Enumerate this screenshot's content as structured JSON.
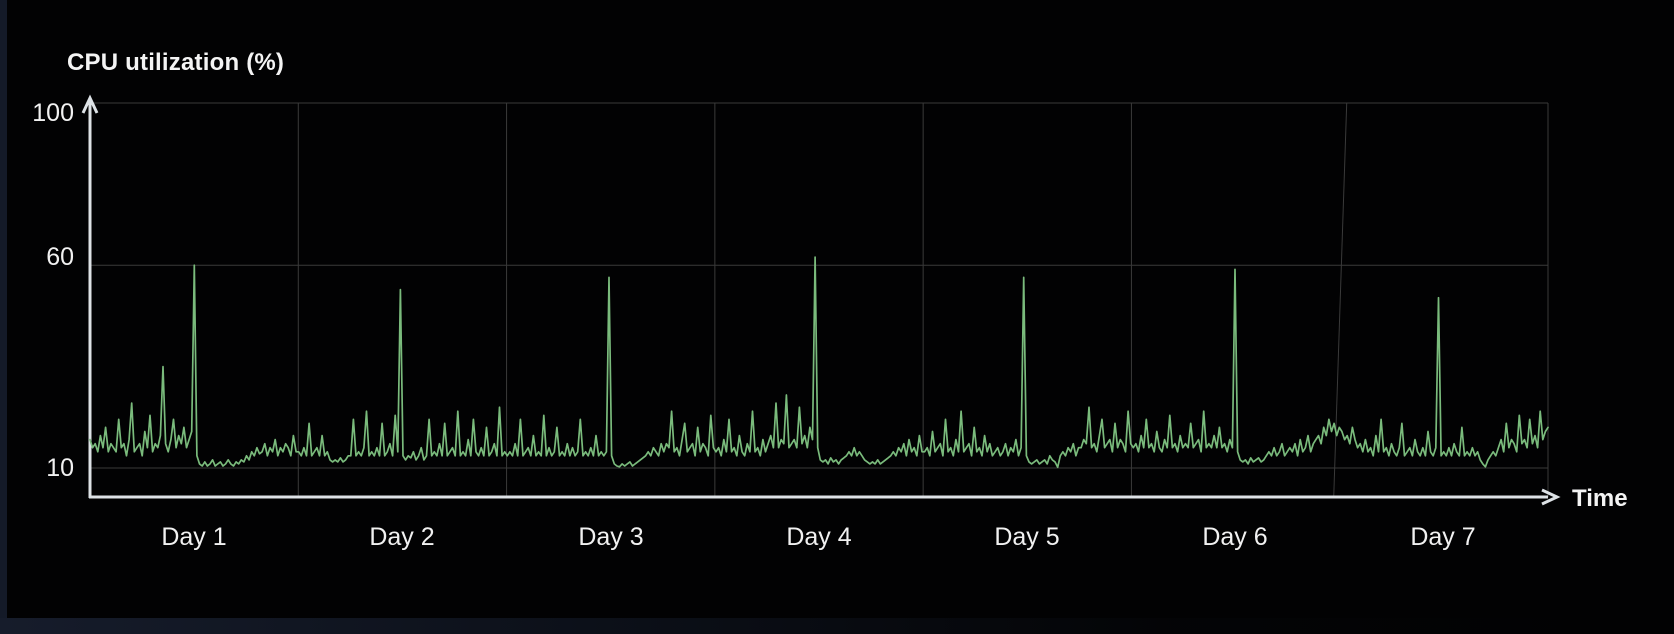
{
  "window": {
    "background_color": "#020203",
    "left_edge_color": "#141a28",
    "bottom_edge_color": "#0c1019"
  },
  "chart_data": {
    "type": "line",
    "title": "CPU utilization (%)",
    "xlabel": "Time",
    "ylabel": "CPU utilization (%)",
    "x_categories": [
      "Day 1",
      "Day 2",
      "Day 3",
      "Day 4",
      "Day 5",
      "Day 6",
      "Day 7"
    ],
    "y_ticks": [
      {
        "value": 100,
        "label": "100"
      },
      {
        "value": 60,
        "label": "60"
      },
      {
        "value": 10,
        "label": "10"
      }
    ],
    "ylim": [
      3,
      105
    ],
    "grid": true,
    "legend": false,
    "line_color": "#7abb7c",
    "axis_color": "#dde2e6",
    "grid_color": "#3a3a3a",
    "text_color": "#f1f1f1",
    "points_per_day": 80,
    "baseline_range": [
      10,
      28
    ],
    "daily_peak_spikes": [
      {
        "day": 1,
        "peak": 60
      },
      {
        "day": 2,
        "peak": 54
      },
      {
        "day": 3,
        "peak": 57
      },
      {
        "day": 4,
        "peak": 62
      },
      {
        "day": 5,
        "peak": 57
      },
      {
        "day": 6,
        "peak": 59
      },
      {
        "day": 7,
        "peak": 52
      }
    ],
    "secondary_spikes": [
      {
        "day": 1,
        "peak": 35
      }
    ],
    "series": [
      {
        "name": "CPU utilization",
        "values_per_day": [
          [
            17,
            15,
            16,
            14,
            18,
            15,
            20,
            14,
            16,
            15,
            14,
            22,
            15,
            16,
            13,
            17,
            26,
            14,
            15,
            16,
            13,
            19,
            15,
            23,
            14,
            16,
            15,
            18,
            35,
            16,
            14,
            17,
            22,
            15,
            18,
            16,
            20,
            15,
            17,
            19,
            60,
            13,
            11,
            10.5,
            11.5,
            10.5,
            11,
            12,
            10.5,
            11,
            11.5,
            10.5,
            11,
            12,
            11,
            10.5,
            11.5,
            11,
            12,
            11.5,
            13,
            12,
            14,
            13,
            15,
            13.5,
            14,
            16,
            13,
            15,
            14,
            17,
            13,
            15,
            14,
            16,
            15,
            13,
            18,
            14
          ],
          [
            14,
            13,
            15,
            13,
            21,
            13,
            14,
            15,
            13,
            18,
            13,
            14,
            12,
            11.5,
            12,
            11.5,
            12.5,
            11.5,
            12,
            13,
            13,
            22,
            13,
            14,
            13,
            15,
            24,
            13,
            14,
            13,
            15,
            13,
            21,
            13,
            14,
            16,
            13,
            23,
            14,
            54,
            13,
            12,
            13,
            12.5,
            14,
            12,
            13,
            15,
            12,
            13,
            22,
            13,
            14,
            13,
            16,
            13,
            21,
            13,
            14,
            15,
            13,
            24,
            13,
            14,
            13,
            17,
            13,
            22,
            14,
            13,
            15,
            13,
            20,
            13,
            14,
            16,
            13,
            25,
            13,
            14
          ],
          [
            13,
            14,
            13,
            16,
            13,
            22,
            13,
            14,
            15,
            13,
            18,
            13,
            14,
            13,
            23,
            13,
            15,
            13,
            14,
            20,
            13,
            14,
            13,
            16,
            13,
            15,
            13,
            14,
            22,
            13,
            14,
            13,
            15,
            13,
            18,
            13,
            14,
            13,
            14,
            57,
            13,
            11,
            10.5,
            10.3,
            11,
            10.5,
            11,
            11.5,
            10.5,
            11,
            11.5,
            12,
            12.5,
            13,
            14,
            13,
            15,
            14,
            13,
            16,
            14,
            16,
            15,
            24,
            14,
            15,
            13,
            17,
            21,
            14,
            15,
            16,
            13,
            20,
            14,
            16,
            15,
            13,
            23,
            15
          ],
          [
            14,
            15,
            13,
            17,
            14,
            22,
            14,
            15,
            13,
            18,
            14,
            13,
            16,
            14,
            24,
            14,
            15,
            13,
            17,
            14,
            16,
            18,
            15,
            26,
            15,
            17,
            16,
            28,
            15,
            16,
            17,
            15,
            25,
            16,
            18,
            15,
            20,
            17,
            62,
            15,
            12,
            11.5,
            12,
            11,
            12.5,
            11.5,
            12,
            11,
            12,
            12.5,
            13,
            14,
            13,
            15,
            13,
            14,
            13,
            12,
            11.5,
            11,
            11.5,
            11,
            12,
            11,
            11.5,
            12,
            12.5,
            13,
            14,
            13,
            15,
            14,
            16,
            13,
            17,
            14,
            15,
            13,
            18,
            14
          ],
          [
            14,
            15,
            13,
            19,
            14,
            15,
            16,
            13,
            22,
            14,
            15,
            13,
            17,
            14,
            24,
            14,
            15,
            16,
            13,
            20,
            14,
            15,
            13,
            18,
            14,
            16,
            13,
            14,
            15,
            13,
            14,
            16,
            13,
            15,
            14,
            17,
            13,
            15,
            57,
            13,
            11.5,
            11,
            11.5,
            12,
            11,
            11.5,
            12,
            11,
            13,
            12,
            11.5,
            10.2,
            13,
            14,
            13,
            15,
            14,
            16,
            13,
            15,
            15,
            17,
            16,
            25,
            15,
            16,
            14,
            18,
            22,
            15,
            16,
            17,
            14,
            21,
            15,
            17,
            16,
            14,
            24,
            16
          ],
          [
            15,
            16,
            14,
            18,
            15,
            22,
            15,
            16,
            14,
            19,
            15,
            14,
            17,
            15,
            23,
            15,
            16,
            14,
            18,
            15,
            16,
            15,
            21,
            15,
            16,
            17,
            14,
            24,
            15,
            16,
            15,
            18,
            15,
            20,
            15,
            16,
            14,
            17,
            15,
            59,
            14,
            12,
            11.5,
            12,
            11,
            12.5,
            11.5,
            12,
            12.5,
            11.5,
            12,
            13,
            14,
            13,
            15,
            13,
            14,
            16,
            13,
            14,
            15,
            14,
            16,
            13,
            17,
            14,
            15,
            18,
            14,
            16,
            17,
            18,
            16,
            20,
            18,
            22,
            19,
            21,
            18,
            20
          ],
          [
            19,
            17,
            18,
            16,
            20,
            17,
            15,
            16,
            14,
            17,
            14,
            15,
            13,
            18,
            14,
            22,
            14,
            15,
            13,
            16,
            14,
            13,
            15,
            21,
            13,
            14,
            15,
            13,
            17,
            14,
            13,
            15,
            13,
            19,
            14,
            13,
            15,
            52,
            13,
            14,
            13,
            15,
            13,
            16,
            14,
            13,
            20,
            13,
            14,
            13,
            15,
            13,
            14,
            12,
            11,
            10.3,
            12,
            13,
            14,
            13,
            15,
            17,
            14,
            21,
            15,
            17,
            16,
            14,
            23,
            16,
            17,
            15,
            22,
            16,
            18,
            15,
            24,
            17,
            19,
            20
          ]
        ]
      }
    ]
  }
}
